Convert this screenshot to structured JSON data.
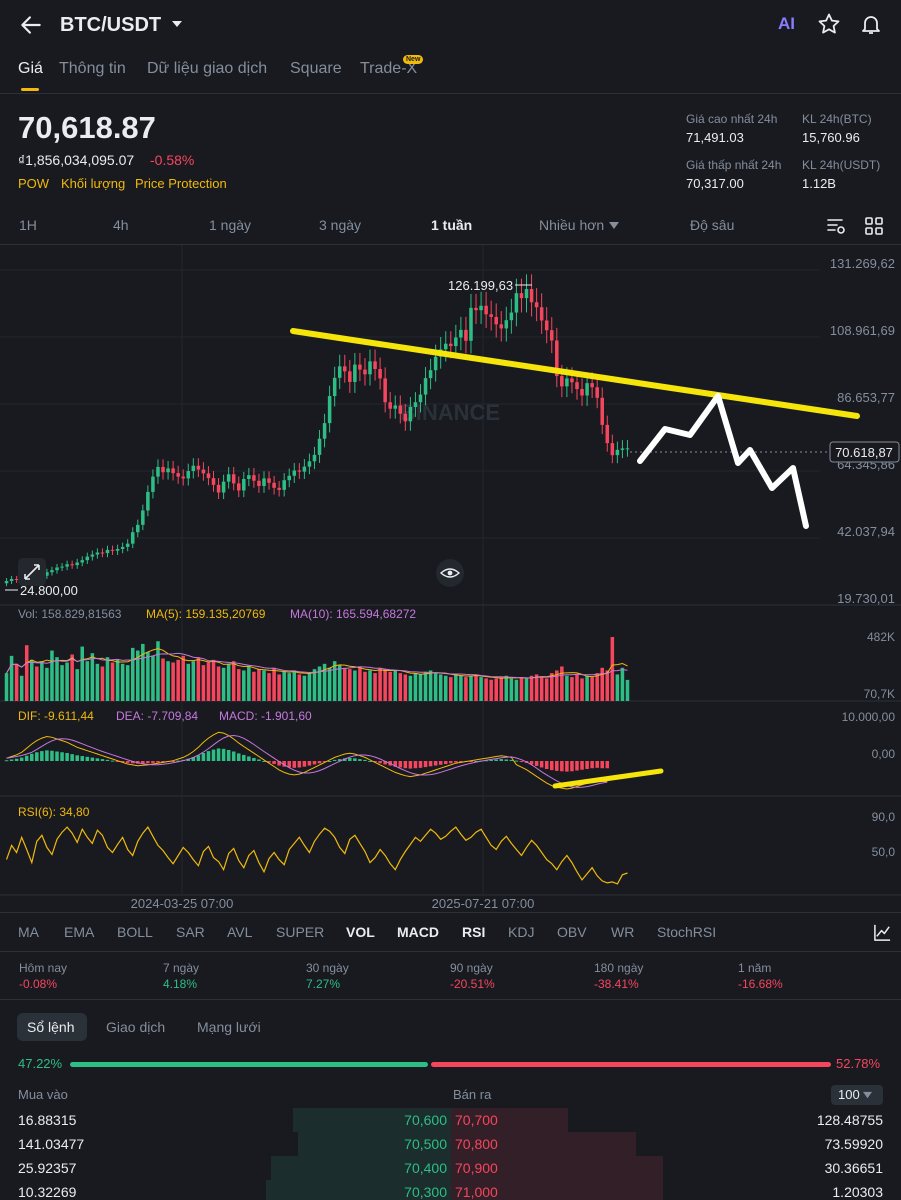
{
  "header": {
    "pair": "BTC/USDT",
    "ai_label": "AI"
  },
  "tabs": [
    {
      "label": "Giá"
    },
    {
      "label": "Thông tin"
    },
    {
      "label": "Dữ liệu giao dịch"
    },
    {
      "label": "Square"
    },
    {
      "label": "Trade-X"
    }
  ],
  "new_badge": "New",
  "price": {
    "last": "70,618.87",
    "fiat": "₫1,856,034,095.07",
    "change": "-0.58%",
    "tags": [
      "POW",
      "Khối lượng",
      "Price Protection"
    ]
  },
  "stats": {
    "high_label": "Giá cao nhất 24h",
    "high_value": "71,491.03",
    "vol_btc_label": "KL 24h(BTC)",
    "vol_btc_value": "15,760.96",
    "low_label": "Giá thấp nhất 24h",
    "low_value": "70,317.00",
    "vol_usdt_label": "KL 24h(USDT)",
    "vol_usdt_value": "1.12B"
  },
  "timeframes": [
    "1H",
    "4h",
    "1 ngày",
    "3 ngày",
    "1 tuần",
    "Nhiều hơn",
    "Độ sâu"
  ],
  "chart_data": {
    "type": "candlestick",
    "price_axis": [
      "131.269,62",
      "108.961,69",
      "86.653,77",
      "64.345,86",
      "42.037,94",
      "19.730,01"
    ],
    "ylim": [
      19730.01,
      131269.62
    ],
    "high_marker": "126.199,63",
    "low_marker": "24.800,00",
    "current_price_tag": "70.618,87",
    "watermark": "BINANCE",
    "x_labels": [
      "2024-03-25 07:00",
      "2025-07-21 07:00"
    ],
    "vol_legend": {
      "vol": "Vol: 158.829,81563",
      "ma5": "MA(5): 159.135,20769",
      "ma10": "MA(10): 165.594,68272"
    },
    "vol_axis": [
      "482K",
      "70,7K"
    ],
    "macd_legend": {
      "dif": "DIF: -9.611,44",
      "dea": "DEA: -7.709,84",
      "macd": "MACD: -1.901,60"
    },
    "macd_axis": [
      "10.000,00",
      "0,00"
    ],
    "rsi_legend": "RSI(6): 34,80",
    "rsi_axis": [
      "90,0",
      "50,0"
    ],
    "closes": [
      25500,
      26200,
      25900,
      26400,
      26300,
      27000,
      26700,
      27300,
      28500,
      29200,
      30100,
      30400,
      31200,
      30900,
      31800,
      32600,
      33800,
      34500,
      35200,
      35000,
      36100,
      35800,
      36400,
      37100,
      38200,
      42100,
      44600,
      49500,
      55800,
      61000,
      64300,
      62500,
      63800,
      62200,
      61000,
      60400,
      62900,
      64700,
      63400,
      62100,
      60500,
      58200,
      55600,
      59300,
      61800,
      58700,
      56300,
      60200,
      61500,
      59600,
      57800,
      60400,
      58900,
      57200,
      56500,
      59800,
      61300,
      63100,
      62700,
      64400,
      66200,
      68400,
      73900,
      79200,
      88400,
      94600,
      98500,
      96800,
      93200,
      99100,
      97400,
      95800,
      100200,
      97600,
      94400,
      86300,
      84100,
      85200,
      82400,
      79800,
      84700,
      86300,
      88900,
      94500,
      97200,
      101800,
      104300,
      106200,
      105400,
      108300,
      110900,
      107200,
      118400,
      117600,
      119100,
      116200,
      115300,
      112800,
      111400,
      114200,
      116800,
      123400,
      121700,
      124800,
      120300,
      118600,
      114100,
      110800,
      107300,
      95200,
      91700,
      94400,
      93100,
      90800,
      88600,
      92800,
      91400,
      87800,
      78600,
      72400,
      68300,
      70100,
      70600,
      70618
    ],
    "volumes": [
      210,
      340,
      280,
      190,
      420,
      310,
      260,
      300,
      250,
      380,
      330,
      270,
      290,
      350,
      240,
      410,
      300,
      360,
      280,
      260,
      330,
      290,
      310,
      280,
      270,
      400,
      380,
      430,
      370,
      340,
      450,
      320,
      300,
      290,
      310,
      340,
      280,
      300,
      330,
      270,
      290,
      310,
      260,
      250,
      280,
      300,
      240,
      230,
      260,
      220,
      240,
      230,
      210,
      250,
      200,
      220,
      210,
      230,
      200,
      190,
      210,
      240,
      260,
      280,
      250,
      300,
      270,
      250,
      240,
      230,
      260,
      220,
      230,
      210,
      250,
      240,
      220,
      230,
      210,
      200,
      190,
      210,
      200,
      220,
      230,
      210,
      200,
      190,
      180,
      200,
      190,
      180,
      190,
      200,
      180,
      170,
      160,
      170,
      180,
      190,
      170,
      160,
      180,
      170,
      190,
      200,
      180,
      170,
      210,
      230,
      260,
      190,
      180,
      200,
      170,
      190,
      180,
      210,
      250,
      230,
      482,
      200,
      250,
      159
    ],
    "rsi": [
      48,
      62,
      55,
      70,
      58,
      45,
      66,
      72,
      60,
      53,
      68,
      75,
      80,
      74,
      65,
      78,
      70,
      64,
      77,
      72,
      60,
      55,
      63,
      70,
      58,
      52,
      66,
      74,
      80,
      71,
      62,
      57,
      50,
      44,
      52,
      60,
      55,
      48,
      42,
      56,
      61,
      50,
      46,
      38,
      54,
      59,
      47,
      40,
      52,
      57,
      45,
      36,
      49,
      55,
      48,
      43,
      58,
      64,
      70,
      62,
      55,
      66,
      73,
      79,
      76,
      70,
      60,
      54,
      68,
      72,
      64,
      56,
      45,
      50,
      58,
      52,
      44,
      38,
      48,
      56,
      63,
      70,
      66,
      72,
      78,
      74,
      68,
      71,
      76,
      80,
      73,
      67,
      70,
      75,
      78,
      70,
      62,
      58,
      66,
      71,
      64,
      58,
      52,
      60,
      67,
      62,
      55,
      48,
      44,
      38,
      46,
      52,
      45,
      36,
      28,
      34,
      40,
      32,
      27,
      25,
      26,
      24,
      33,
      34.8
    ],
    "macd_hist": [
      200,
      400,
      600,
      900,
      1400,
      1900,
      2300,
      2600,
      2800,
      2700,
      2500,
      2300,
      2100,
      1800,
      1500,
      1300,
      1100,
      900,
      700,
      500,
      300,
      100,
      -100,
      -300,
      -500,
      -600,
      -700,
      -650,
      -600,
      -500,
      -400,
      -300,
      -200,
      -100,
      100,
      300,
      600,
      1000,
      1500,
      2100,
      2600,
      3000,
      3300,
      3200,
      2900,
      2500,
      2000,
      1600,
      1200,
      800,
      400,
      0,
      -400,
      -800,
      -1200,
      -1500,
      -1700,
      -1800,
      -1700,
      -1500,
      -1200,
      -900,
      -600,
      -300,
      0,
      300,
      500,
      700,
      800,
      700,
      500,
      300,
      0,
      -300,
      -600,
      -900,
      -1200,
      -1500,
      -1700,
      -1900,
      -2000,
      -1900,
      -1800,
      -1600,
      -1400,
      -1200,
      -1000,
      -800,
      -600,
      -400,
      -300,
      -200,
      -100,
      0,
      100,
      200,
      300,
      400,
      500,
      400,
      300,
      100,
      -200,
      -500,
      -900,
      -1300,
      -1700,
      -2100,
      -2400,
      -2600,
      -2700,
      -2800,
      -2700,
      -2500,
      -2300,
      -2100,
      -1900,
      -1800,
      -1900,
      -1901.6
    ]
  },
  "indicators": [
    "MA",
    "EMA",
    "BOLL",
    "SAR",
    "AVL",
    "SUPER",
    "VOL",
    "MACD",
    "RSI",
    "KDJ",
    "OBV",
    "WR",
    "StochRSI"
  ],
  "performance": [
    {
      "label": "Hôm nay",
      "value": "-0.08%",
      "color": "#f6465d"
    },
    {
      "label": "7 ngày",
      "value": "4.18%",
      "color": "#2ebd85"
    },
    {
      "label": "30 ngày",
      "value": "7.27%",
      "color": "#2ebd85"
    },
    {
      "label": "90 ngày",
      "value": "-20.51%",
      "color": "#f6465d"
    },
    {
      "label": "180 ngày",
      "value": "-38.41%",
      "color": "#f6465d"
    },
    {
      "label": "1 năm",
      "value": "-16.68%",
      "color": "#f6465d"
    }
  ],
  "orderbook": {
    "tabs": [
      "Sổ lệnh",
      "Giao dịch",
      "Mạng lưới"
    ],
    "buy_ratio": "47.22%",
    "sell_ratio": "52.78%",
    "buy_head": "Mua vào",
    "sell_head": "Bán ra",
    "depth": "100",
    "rows": [
      {
        "bid_qty": "16.88315",
        "bid_price": "70,600",
        "ask_price": "70,700",
        "ask_qty": "128.48755",
        "bid_depth": 0.35,
        "ask_depth": 0.26
      },
      {
        "bid_qty": "141.03477",
        "bid_price": "70,500",
        "ask_price": "70,800",
        "ask_qty": "73.59920",
        "bid_depth": 0.34,
        "ask_depth": 0.41
      },
      {
        "bid_qty": "25.92357",
        "bid_price": "70,400",
        "ask_price": "70,900",
        "ask_qty": "30.36651",
        "bid_depth": 0.4,
        "ask_depth": 0.47
      },
      {
        "bid_qty": "10.32269",
        "bid_price": "70,300",
        "ask_price": "71,000",
        "ask_qty": "1.20303",
        "bid_depth": 0.41,
        "ask_depth": 0.47
      }
    ]
  },
  "colors": {
    "up": "#2ebd85",
    "down": "#f6465d",
    "accent": "#f0b90b",
    "bg": "#181a20"
  }
}
